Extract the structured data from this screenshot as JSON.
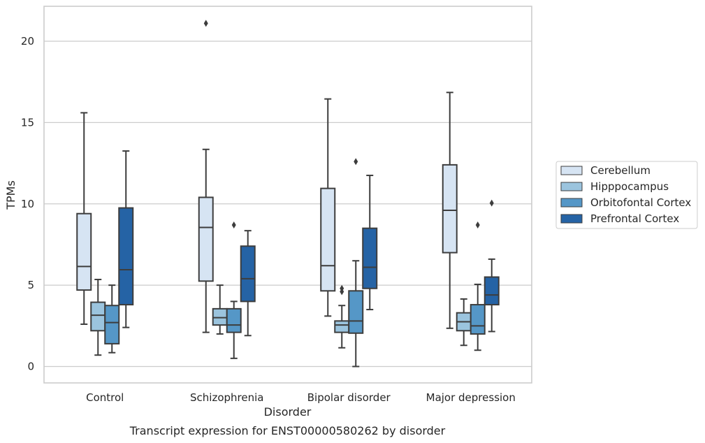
{
  "chart_data": {
    "type": "box",
    "xlabel": "Disorder",
    "ylabel": "TPMs",
    "caption": "Transcript expression for ENST00000580262 by disorder",
    "categories": [
      "Control",
      "Schizophrenia",
      "Bipolar disorder",
      "Major depression"
    ],
    "ylim": [
      -1,
      22.2
    ],
    "yticks": [
      0,
      5,
      10,
      15,
      20
    ],
    "grid": "horizontal",
    "legend_position": "right",
    "series": [
      {
        "name": "Cerebellum",
        "color": "#d6e4f3",
        "boxes": [
          {
            "whislo": 2.6,
            "q1": 4.7,
            "med": 6.15,
            "q3": 9.4,
            "whishi": 15.6,
            "fliers": []
          },
          {
            "whislo": 2.1,
            "q1": 5.25,
            "med": 8.55,
            "q3": 10.4,
            "whishi": 13.35,
            "fliers": [
              21.1
            ]
          },
          {
            "whislo": 3.1,
            "q1": 4.65,
            "med": 6.2,
            "q3": 10.95,
            "whishi": 16.45,
            "fliers": []
          },
          {
            "whislo": 2.35,
            "q1": 7.0,
            "med": 9.6,
            "q3": 12.4,
            "whishi": 16.85,
            "fliers": []
          }
        ]
      },
      {
        "name": "Hipppocampus",
        "color": "#9bc4de",
        "boxes": [
          {
            "whislo": 0.7,
            "q1": 2.2,
            "med": 3.15,
            "q3": 3.95,
            "whishi": 5.35,
            "fliers": []
          },
          {
            "whislo": 2.0,
            "q1": 2.55,
            "med": 3.0,
            "q3": 3.55,
            "whishi": 5.0,
            "fliers": []
          },
          {
            "whislo": 1.15,
            "q1": 2.1,
            "med": 2.55,
            "q3": 2.8,
            "whishi": 3.75,
            "fliers": [
              4.6,
              4.8
            ]
          },
          {
            "whislo": 1.3,
            "q1": 2.2,
            "med": 2.75,
            "q3": 3.3,
            "whishi": 4.15,
            "fliers": []
          }
        ]
      },
      {
        "name": "Orbitofontal Cortex",
        "color": "#5597c7",
        "boxes": [
          {
            "whislo": 0.85,
            "q1": 1.4,
            "med": 2.7,
            "q3": 3.75,
            "whishi": 5.0,
            "fliers": []
          },
          {
            "whislo": 0.5,
            "q1": 2.1,
            "med": 2.55,
            "q3": 3.55,
            "whishi": 4.0,
            "fliers": [
              8.7
            ]
          },
          {
            "whislo": 0.0,
            "q1": 2.05,
            "med": 2.8,
            "q3": 4.65,
            "whishi": 6.5,
            "fliers": [
              12.6
            ]
          },
          {
            "whislo": 1.0,
            "q1": 2.0,
            "med": 2.5,
            "q3": 3.8,
            "whishi": 5.05,
            "fliers": [
              8.7
            ]
          }
        ]
      },
      {
        "name": "Prefrontal Cortex",
        "color": "#2563a5",
        "boxes": [
          {
            "whislo": 2.4,
            "q1": 3.8,
            "med": 5.95,
            "q3": 9.75,
            "whishi": 13.25,
            "fliers": []
          },
          {
            "whislo": 1.9,
            "q1": 4.0,
            "med": 5.4,
            "q3": 7.4,
            "whishi": 8.35,
            "fliers": []
          },
          {
            "whislo": 3.5,
            "q1": 4.8,
            "med": 6.1,
            "q3": 8.5,
            "whishi": 11.75,
            "fliers": []
          },
          {
            "whislo": 2.15,
            "q1": 3.8,
            "med": 4.4,
            "q3": 5.5,
            "whishi": 6.6,
            "fliers": [
              10.05
            ]
          }
        ]
      }
    ]
  }
}
